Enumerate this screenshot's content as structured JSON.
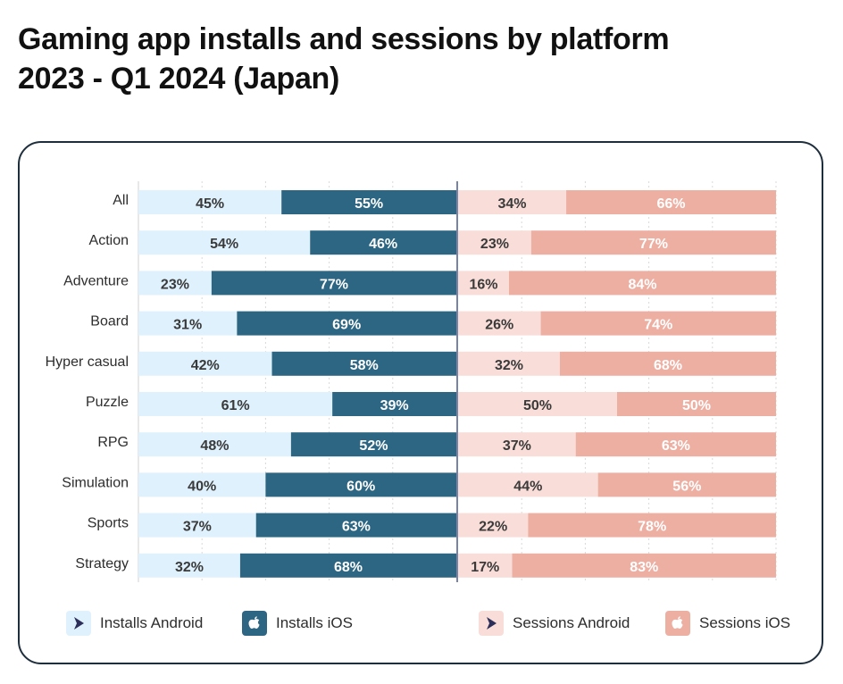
{
  "title_line1": "Gaming app installs and sessions by platform",
  "title_line2": "2023 - Q1 2024 (Japan)",
  "colors": {
    "installs_android": "#dff1fd",
    "installs_ios": "#2d6682",
    "sessions_android": "#f8ddd8",
    "sessions_ios": "#eeafa3",
    "android_icon": "#2b2f5a",
    "apple_icon": "#ffffff",
    "divider": "#4a5a8a",
    "grid": "#d9d9d9"
  },
  "legend": [
    {
      "label": "Installs Android",
      "icon": "play-store-icon",
      "color_key": "installs_android"
    },
    {
      "label": "Installs iOS",
      "icon": "apple-icon",
      "color_key": "installs_ios"
    },
    {
      "label": "Sessions Android",
      "icon": "play-store-icon",
      "color_key": "sessions_android"
    },
    {
      "label": "Sessions iOS",
      "icon": "apple-icon",
      "color_key": "sessions_ios"
    }
  ],
  "chart_data": {
    "type": "bar",
    "subtype": "100% stacked horizontal, two panels",
    "title": "Gaming app installs and sessions by platform 2023 - Q1 2024 (Japan)",
    "categories": [
      "All",
      "Action",
      "Adventure",
      "Board",
      "Hyper casual",
      "Puzzle",
      "RPG",
      "Simulation",
      "Sports",
      "Strategy"
    ],
    "panels": [
      {
        "name": "Installs",
        "series": [
          {
            "name": "Installs Android",
            "values": [
              45,
              54,
              23,
              31,
              42,
              61,
              48,
              40,
              37,
              32
            ]
          },
          {
            "name": "Installs iOS",
            "values": [
              55,
              46,
              77,
              69,
              58,
              39,
              52,
              60,
              63,
              68
            ]
          }
        ]
      },
      {
        "name": "Sessions",
        "series": [
          {
            "name": "Sessions Android",
            "values": [
              34,
              23,
              16,
              26,
              32,
              50,
              37,
              44,
              22,
              17
            ]
          },
          {
            "name": "Sessions iOS",
            "values": [
              66,
              77,
              84,
              74,
              68,
              50,
              63,
              56,
              78,
              83
            ]
          }
        ]
      }
    ],
    "value_format": "percent",
    "xlim": [
      0,
      100
    ],
    "grid": true,
    "legend_position": "bottom"
  }
}
